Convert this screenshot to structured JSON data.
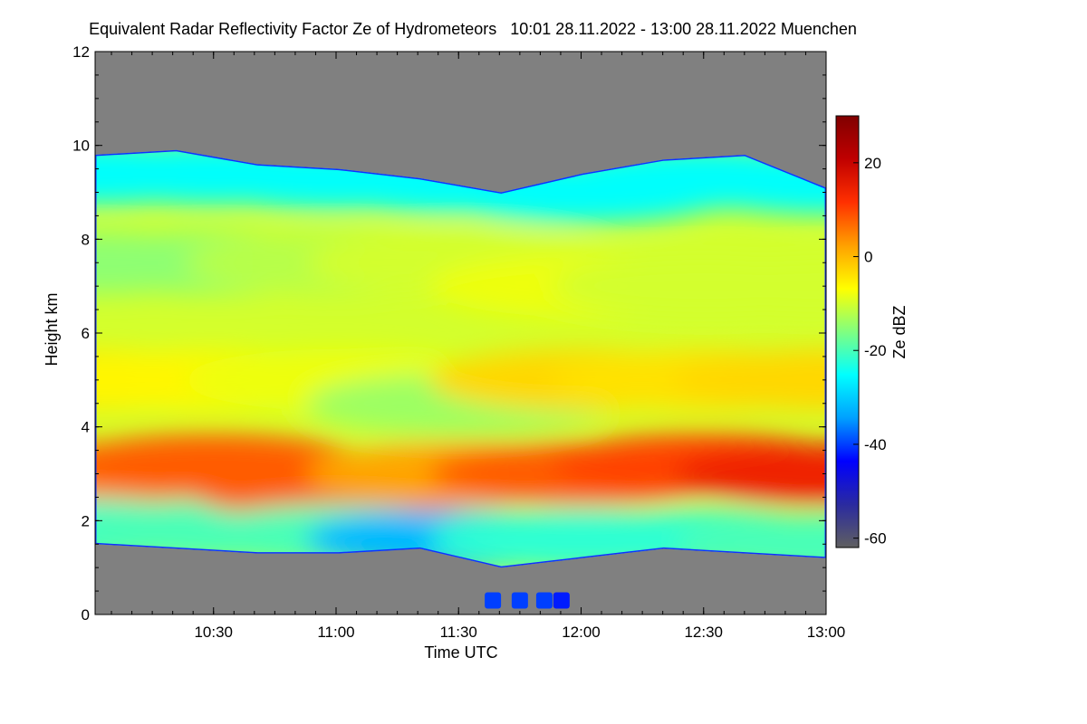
{
  "chart_data": {
    "type": "heatmap",
    "title": "Equivalent Radar Reflectivity Factor Ze of Hydrometeors   10:01 28.11.2022 - 13:00 28.11.2022 Muenchen",
    "xlabel": "Time UTC",
    "ylabel": "Height km",
    "x_ticks": [
      "10:30",
      "11:00",
      "11:30",
      "12:00",
      "12:30",
      "13:00"
    ],
    "x_tick_hours": [
      10.5,
      11.0,
      11.5,
      12.0,
      12.5,
      13.0
    ],
    "xlim_hours": [
      10.0167,
      13.0
    ],
    "y_ticks": [
      0,
      2,
      4,
      6,
      8,
      10,
      12
    ],
    "ylim": [
      0,
      12
    ],
    "colorbar": {
      "label": "Ze dBZ",
      "ticks": [
        20,
        0,
        -20,
        -40,
        -60
      ],
      "range": [
        -62,
        30
      ],
      "colors": [
        "#606060",
        "#2a2aa0",
        "#0000ff",
        "#00a0ff",
        "#00ffff",
        "#80ff80",
        "#ffff00",
        "#ffa000",
        "#ff3000",
        "#c00000",
        "#800000"
      ],
      "below_noise_color": "#808080"
    },
    "cloud_top_km": [
      9.8,
      9.9,
      9.6,
      9.5,
      9.3,
      9.0,
      9.4,
      9.7,
      9.8,
      9.1
    ],
    "cloud_base_km": [
      1.5,
      1.4,
      1.3,
      1.3,
      1.4,
      1.0,
      1.2,
      1.4,
      1.3,
      1.2
    ],
    "cloud_layers": [
      {
        "t": 10.02,
        "h": 9.4,
        "ze": -25
      },
      {
        "t": 10.02,
        "h": 7.5,
        "ze": -15
      },
      {
        "t": 10.02,
        "h": 5.0,
        "ze": -5
      },
      {
        "t": 10.02,
        "h": 3.0,
        "ze": 4
      },
      {
        "t": 10.02,
        "h": 1.8,
        "ze": -22
      },
      {
        "t": 10.5,
        "h": 9.4,
        "ze": -25
      },
      {
        "t": 10.5,
        "h": 7.5,
        "ze": -15
      },
      {
        "t": 10.5,
        "h": 5.0,
        "ze": -6
      },
      {
        "t": 10.5,
        "h": 3.2,
        "ze": 8
      },
      {
        "t": 10.5,
        "h": 1.8,
        "ze": -20
      },
      {
        "t": 11.0,
        "h": 9.3,
        "ze": -25
      },
      {
        "t": 11.0,
        "h": 7.5,
        "ze": -12
      },
      {
        "t": 11.0,
        "h": 5.0,
        "ze": -8
      },
      {
        "t": 11.0,
        "h": 2.7,
        "ze": 8
      },
      {
        "t": 11.0,
        "h": 1.7,
        "ze": -20
      },
      {
        "t": 11.5,
        "h": 9.2,
        "ze": -25
      },
      {
        "t": 11.5,
        "h": 7.5,
        "ze": -10
      },
      {
        "t": 11.5,
        "h": 4.5,
        "ze": -14
      },
      {
        "t": 11.5,
        "h": 3.0,
        "ze": 2
      },
      {
        "t": 11.5,
        "h": 1.6,
        "ze": -32
      },
      {
        "t": 12.0,
        "h": 9.0,
        "ze": -25
      },
      {
        "t": 12.0,
        "h": 7.0,
        "ze": -8
      },
      {
        "t": 12.0,
        "h": 5.0,
        "ze": -3
      },
      {
        "t": 12.0,
        "h": 3.0,
        "ze": 8
      },
      {
        "t": 12.0,
        "h": 1.6,
        "ze": -22
      },
      {
        "t": 12.5,
        "h": 9.3,
        "ze": -25
      },
      {
        "t": 12.5,
        "h": 7.0,
        "ze": -10
      },
      {
        "t": 12.5,
        "h": 5.0,
        "ze": -4
      },
      {
        "t": 12.5,
        "h": 3.2,
        "ze": 10
      },
      {
        "t": 12.5,
        "h": 1.6,
        "ze": -22
      },
      {
        "t": 13.0,
        "h": 9.2,
        "ze": -25
      },
      {
        "t": 13.0,
        "h": 7.0,
        "ze": -10
      },
      {
        "t": 13.0,
        "h": 5.0,
        "ze": -3
      },
      {
        "t": 13.0,
        "h": 3.0,
        "ze": 14
      },
      {
        "t": 13.0,
        "h": 1.5,
        "ze": -20
      }
    ],
    "surface_echoes": [
      {
        "t": 11.64,
        "h": 0.3,
        "ze": -40
      },
      {
        "t": 11.75,
        "h": 0.3,
        "ze": -40
      },
      {
        "t": 11.85,
        "h": 0.3,
        "ze": -40
      },
      {
        "t": 11.92,
        "h": 0.3,
        "ze": -42
      }
    ]
  }
}
